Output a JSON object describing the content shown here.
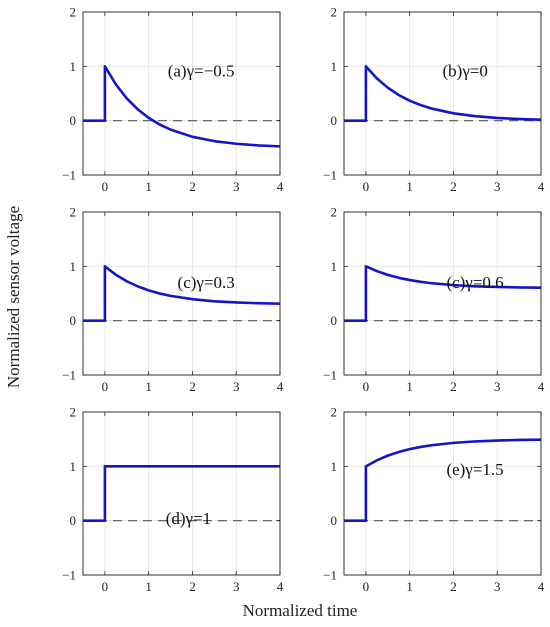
{
  "figure": {
    "xlabel": "Normalized time",
    "ylabel": "Normalized sensor voltage"
  },
  "chart_data": [
    {
      "type": "line",
      "annotation": "(a)γ=−0.5",
      "gamma": -0.5,
      "xlim": [
        -0.5,
        4
      ],
      "ylim": [
        -1,
        2
      ],
      "xticks": [
        "0",
        "1",
        "2",
        "3",
        "4"
      ],
      "yticks": [
        "−1",
        "0",
        "1",
        "2"
      ],
      "grid": true,
      "series": [
        {
          "color": "#1515c8",
          "x": [
            -0.5,
            0,
            0,
            0.25,
            0.5,
            0.75,
            1.0,
            1.25,
            1.5,
            2.0,
            2.5,
            3.0,
            3.5,
            4.0
          ],
          "y": [
            0,
            0,
            1.0,
            0.668,
            0.41,
            0.209,
            0.052,
            -0.07,
            -0.165,
            -0.297,
            -0.377,
            -0.425,
            -0.455,
            -0.473
          ]
        }
      ],
      "reference_line": {
        "y": 0,
        "style": "dashed",
        "color": "#555555"
      }
    },
    {
      "type": "line",
      "annotation": "(b)γ=0",
      "gamma": 0,
      "xlim": [
        -0.5,
        4
      ],
      "ylim": [
        -1,
        2
      ],
      "xticks": [
        "0",
        "1",
        "2",
        "3",
        "4"
      ],
      "yticks": [
        "−1",
        "0",
        "1",
        "2"
      ],
      "grid": true,
      "series": [
        {
          "color": "#1515c8",
          "x": [
            -0.5,
            0,
            0,
            0.25,
            0.5,
            0.75,
            1.0,
            1.25,
            1.5,
            2.0,
            2.5,
            3.0,
            3.5,
            4.0
          ],
          "y": [
            0,
            0,
            1.0,
            0.779,
            0.607,
            0.472,
            0.368,
            0.287,
            0.223,
            0.135,
            0.082,
            0.05,
            0.03,
            0.018
          ]
        }
      ],
      "reference_line": {
        "y": 0,
        "style": "dashed",
        "color": "#555555"
      }
    },
    {
      "type": "line",
      "annotation": "(c)γ=0.3",
      "gamma": 0.3,
      "xlim": [
        -0.5,
        4
      ],
      "ylim": [
        -1,
        2
      ],
      "xticks": [
        "0",
        "1",
        "2",
        "3",
        "4"
      ],
      "yticks": [
        "−1",
        "0",
        "1",
        "2"
      ],
      "grid": true,
      "series": [
        {
          "color": "#1515c8",
          "x": [
            -0.5,
            0,
            0,
            0.25,
            0.5,
            0.75,
            1.0,
            1.25,
            1.5,
            2.0,
            2.5,
            3.0,
            3.5,
            4.0
          ],
          "y": [
            0,
            0,
            1.0,
            0.845,
            0.725,
            0.631,
            0.558,
            0.501,
            0.456,
            0.395,
            0.357,
            0.335,
            0.321,
            0.313
          ]
        }
      ],
      "reference_line": {
        "y": 0,
        "style": "dashed",
        "color": "#555555"
      }
    },
    {
      "type": "line",
      "annotation": "(c)γ=0.6",
      "gamma": 0.6,
      "xlim": [
        -0.5,
        4
      ],
      "ylim": [
        -1,
        2
      ],
      "xticks": [
        "0",
        "1",
        "2",
        "3",
        "4"
      ],
      "yticks": [
        "−1",
        "0",
        "1",
        "2"
      ],
      "grid": true,
      "series": [
        {
          "color": "#1515c8",
          "x": [
            -0.5,
            0,
            0,
            0.25,
            0.5,
            0.75,
            1.0,
            1.25,
            1.5,
            2.0,
            2.5,
            3.0,
            3.5,
            4.0
          ],
          "y": [
            0,
            0,
            1.0,
            0.912,
            0.843,
            0.789,
            0.747,
            0.715,
            0.689,
            0.654,
            0.633,
            0.62,
            0.612,
            0.607
          ]
        }
      ],
      "reference_line": {
        "y": 0,
        "style": "dashed",
        "color": "#555555"
      }
    },
    {
      "type": "line",
      "annotation": "(d)γ=1",
      "gamma": 1,
      "xlim": [
        -0.5,
        4
      ],
      "ylim": [
        -1,
        2
      ],
      "xticks": [
        "0",
        "1",
        "2",
        "3",
        "4"
      ],
      "yticks": [
        "−1",
        "0",
        "1",
        "2"
      ],
      "grid": true,
      "series": [
        {
          "color": "#1515c8",
          "x": [
            -0.5,
            0,
            0,
            4.0
          ],
          "y": [
            0,
            0,
            1.0,
            1.0
          ]
        }
      ],
      "reference_line": {
        "y": 0,
        "style": "dashed",
        "color": "#555555"
      }
    },
    {
      "type": "line",
      "annotation": "(e)γ=1.5",
      "gamma": 1.5,
      "xlim": [
        -0.5,
        4
      ],
      "ylim": [
        -1,
        2
      ],
      "xticks": [
        "0",
        "1",
        "2",
        "3",
        "4"
      ],
      "yticks": [
        "−1",
        "0",
        "1",
        "2"
      ],
      "grid": true,
      "series": [
        {
          "color": "#1515c8",
          "x": [
            -0.5,
            0,
            0,
            0.25,
            0.5,
            0.75,
            1.0,
            1.25,
            1.5,
            2.0,
            2.5,
            3.0,
            3.5,
            4.0
          ],
          "y": [
            0,
            0,
            1.0,
            1.11,
            1.197,
            1.264,
            1.316,
            1.357,
            1.388,
            1.432,
            1.459,
            1.475,
            1.485,
            1.491
          ]
        }
      ],
      "reference_line": {
        "y": 0,
        "style": "dashed",
        "color": "#555555"
      }
    }
  ]
}
